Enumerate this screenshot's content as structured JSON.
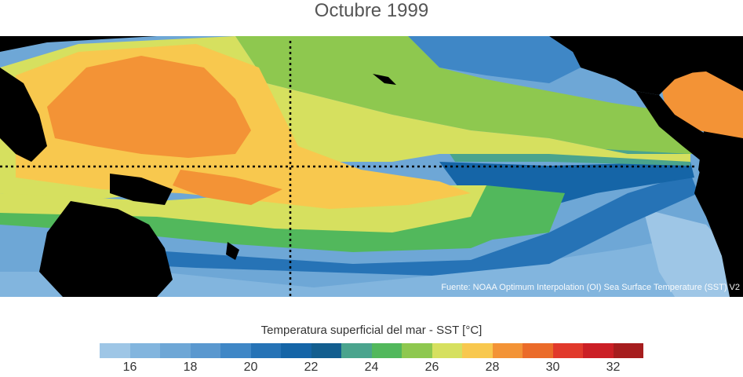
{
  "title": "Octubre 1999",
  "source": "Fuente: NOAA Optimum Interpolation (OI) Sea Surface Temperature (SST) V2",
  "colorbar": {
    "label": "Temperatura superficial del mar - SST  [°C]",
    "min": 15,
    "max": 33,
    "colors": [
      "#9ec6e6",
      "#82b5de",
      "#6ea7d6",
      "#5a98cf",
      "#3f87c6",
      "#2673b6",
      "#1565a7",
      "#135e8f",
      "#4aa48d",
      "#52b85c",
      "#8ec84f",
      "#d6e05f",
      "#f8c84e",
      "#f39336",
      "#eb6b29",
      "#e1392b",
      "#cb1f25",
      "#a61d1e"
    ],
    "ticks": [
      "16",
      "18",
      "20",
      "22",
      "24",
      "26",
      "28",
      "30",
      "32"
    ]
  },
  "map": {
    "background": "#000000",
    "grid_lines": [
      "equator",
      "dateline"
    ]
  }
}
